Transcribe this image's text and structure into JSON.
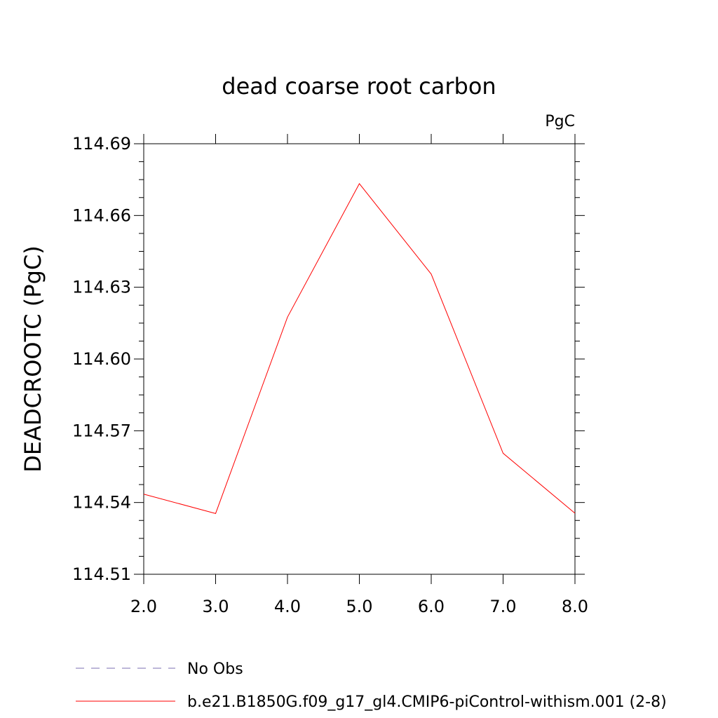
{
  "chart_data": {
    "type": "line",
    "title": "dead coarse root carbon",
    "units_label": "PgC",
    "ylabel": "DEADCROOTC  (PgC)",
    "xlabel": "",
    "xlim": [
      2.0,
      8.0
    ],
    "ylim": [
      114.51,
      114.69
    ],
    "x_ticks": [
      2.0,
      3.0,
      4.0,
      5.0,
      6.0,
      7.0,
      8.0
    ],
    "x_tick_labels": [
      "2.0",
      "3.0",
      "4.0",
      "5.0",
      "6.0",
      "7.0",
      "8.0"
    ],
    "y_ticks": [
      114.51,
      114.54,
      114.57,
      114.6,
      114.63,
      114.66,
      114.69
    ],
    "y_tick_labels": [
      "114.51",
      "114.54",
      "114.57",
      "114.60",
      "114.63",
      "114.66",
      "114.69"
    ],
    "grid": false,
    "legend_position": "bottom",
    "series": [
      {
        "name": "No Obs",
        "color": "#7b6fb0",
        "dash": "dashed",
        "x": [],
        "values": []
      },
      {
        "name": "b.e21.B1850G.f09_g17_gl4.CMIP6-piControl-withism.001 (2-8)",
        "color": "#ff0000",
        "dash": "solid",
        "x": [
          2.0,
          3.0,
          4.0,
          5.0,
          6.0,
          7.0,
          8.0
        ],
        "values": [
          114.5435,
          114.5354,
          114.6175,
          114.6733,
          114.6355,
          114.5606,
          114.5355
        ]
      }
    ]
  }
}
